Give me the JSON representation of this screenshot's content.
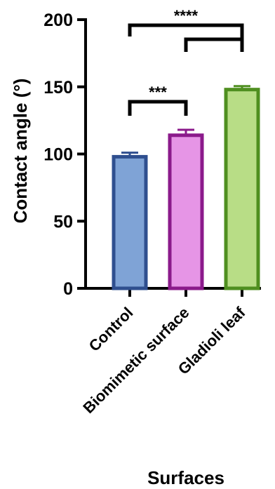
{
  "chart_data": {
    "type": "bar",
    "categories": [
      "Control",
      "Biomimetic surface",
      "Gladioli leaf"
    ],
    "values": [
      99,
      115,
      149
    ],
    "errors": [
      2,
      3,
      1.5
    ],
    "ylabel": "Contact angle (°)",
    "xlabel": "Surfaces",
    "ylim": [
      0,
      200
    ],
    "yticks": [
      "0",
      "50",
      "100",
      "150",
      "200"
    ],
    "grid": false,
    "bar_fill_colors": [
      "#7fa3d6",
      "#e695e6",
      "#b8dd86"
    ],
    "bar_edge_colors": [
      "#2f4f8f",
      "#8b1a8b",
      "#4f8f20"
    ],
    "significance": [
      {
        "from": 0,
        "to": 1,
        "label": "***"
      },
      {
        "from": 0,
        "to": 2,
        "label": "****"
      },
      {
        "from": 1,
        "to": 2,
        "label": ""
      }
    ]
  }
}
